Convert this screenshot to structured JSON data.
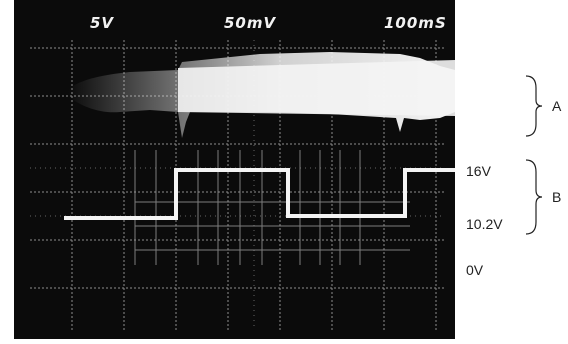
{
  "scope": {
    "volts_per_div_ch1": "5V",
    "volts_per_div_ch2": "50mV",
    "time_per_div": "100mS"
  },
  "annotations": {
    "trace_a_label": "A",
    "trace_b_label": "B",
    "level_high": "16V",
    "level_low": "10.2V",
    "level_zero": "0V"
  },
  "colors": {
    "screen": "#0b0b0b",
    "grid": "#8c8c8c",
    "trace": "#f4f4f4"
  }
}
